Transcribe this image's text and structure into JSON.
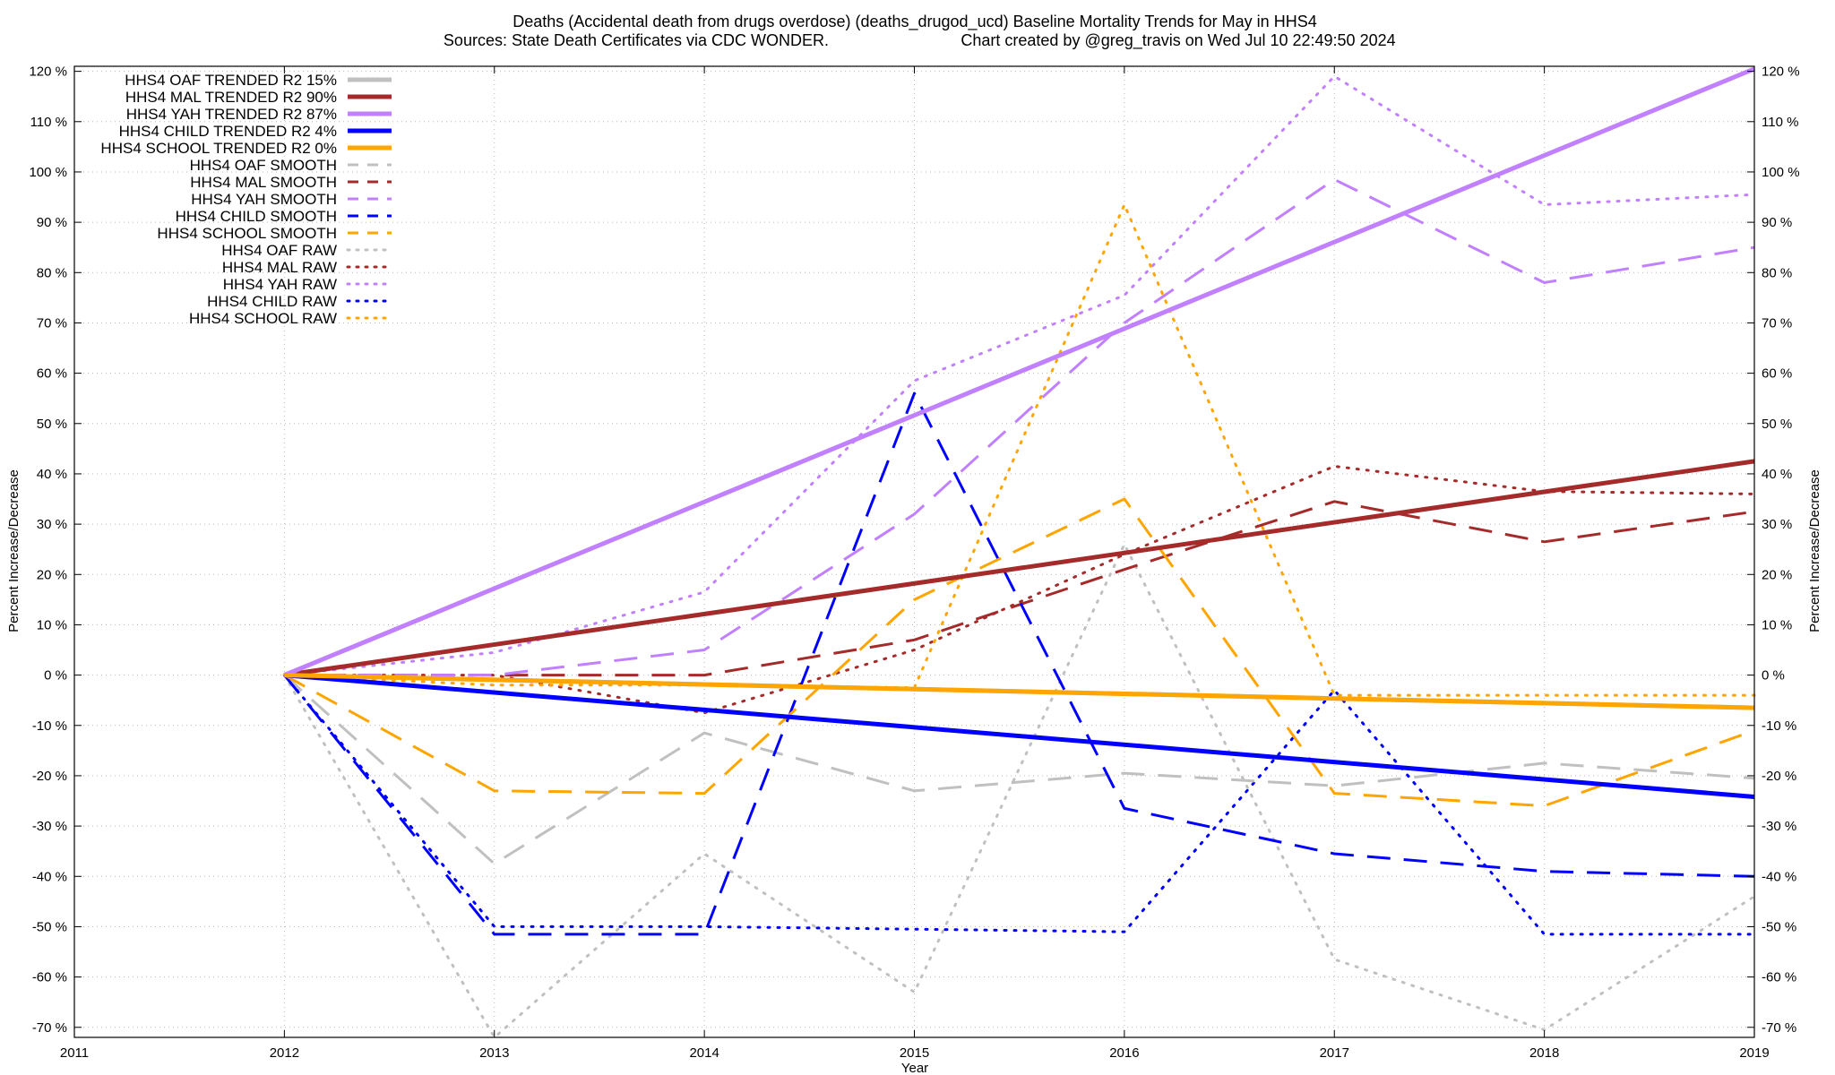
{
  "chart_data": {
    "type": "line",
    "title_line1": "Deaths (Accidental death from drugs overdose) (deaths_drugod_ucd)  Baseline Mortality Trends for May in HHS4",
    "title_line2_left": "Sources: State Death Certificates via CDC WONDER.",
    "title_line2_right": "Chart created by @greg_travis on Wed Jul 10 22:49:50 2024",
    "xlabel": "Year",
    "ylabel": "Percent Increase/Decrease",
    "ylabel_right": "Percent Increase/Decrease",
    "xlim": [
      2011,
      2019
    ],
    "ylim": [
      -72,
      121
    ],
    "x_ticks": [
      2011,
      2012,
      2013,
      2014,
      2015,
      2016,
      2017,
      2018,
      2019
    ],
    "y_ticks": [
      120,
      110,
      100,
      90,
      80,
      70,
      60,
      50,
      40,
      30,
      20,
      10,
      0,
      -10,
      -20,
      -30,
      -40,
      -50,
      -60,
      -70
    ],
    "y_tick_suffix": " %",
    "grid": true,
    "legend_position": "top-left",
    "series": [
      {
        "name": "HHS4 OAF TRENDED R2",
        "r2": "15%",
        "color": "#c0c0c0",
        "style": "solid",
        "width": 5,
        "points": [
          [
            2012,
            0
          ],
          [
            2019,
            -6.5
          ]
        ]
      },
      {
        "name": "HHS4 MAL TRENDED R2",
        "r2": "90%",
        "color": "#a52a2a",
        "style": "solid",
        "width": 5,
        "points": [
          [
            2012,
            0
          ],
          [
            2019,
            42.5
          ]
        ]
      },
      {
        "name": "HHS4 YAH TRENDED R2",
        "r2": "87%",
        "color": "#c080ff",
        "style": "solid",
        "width": 5,
        "points": [
          [
            2012,
            0
          ],
          [
            2019,
            120.5
          ]
        ]
      },
      {
        "name": "HHS4 CHILD TRENDED R2",
        "r2": "4%",
        "color": "#0000ff",
        "style": "solid",
        "width": 5,
        "points": [
          [
            2012,
            0
          ],
          [
            2019,
            -24.2
          ]
        ]
      },
      {
        "name": "HHS4 SCHOOL TRENDED R2",
        "r2": "0%",
        "color": "#ffa500",
        "style": "solid",
        "width": 5,
        "points": [
          [
            2012,
            0
          ],
          [
            2019,
            -6.5
          ]
        ]
      },
      {
        "name": "HHS4 OAF SMOOTH",
        "r2": "",
        "color": "#c0c0c0",
        "style": "dashed",
        "width": 3,
        "points": [
          [
            2012,
            0
          ],
          [
            2013,
            -37.5
          ],
          [
            2014,
            -11.5
          ],
          [
            2015,
            -23
          ],
          [
            2016,
            -19.5
          ],
          [
            2017,
            -22
          ],
          [
            2018,
            -17.5
          ],
          [
            2019,
            -20.5
          ]
        ]
      },
      {
        "name": "HHS4 MAL SMOOTH",
        "r2": "",
        "color": "#a52a2a",
        "style": "dashed",
        "width": 3,
        "points": [
          [
            2012,
            0
          ],
          [
            2013,
            0
          ],
          [
            2014,
            0
          ],
          [
            2015,
            7
          ],
          [
            2016,
            21
          ],
          [
            2017,
            34.5
          ],
          [
            2018,
            26.5
          ],
          [
            2019,
            32.5
          ]
        ]
      },
      {
        "name": "HHS4 YAH SMOOTH",
        "r2": "",
        "color": "#c080ff",
        "style": "dashed",
        "width": 3,
        "points": [
          [
            2012,
            0
          ],
          [
            2013,
            0
          ],
          [
            2014,
            5
          ],
          [
            2015,
            32
          ],
          [
            2016,
            70
          ],
          [
            2017,
            98.5
          ],
          [
            2018,
            78
          ],
          [
            2019,
            85
          ]
        ]
      },
      {
        "name": "HHS4 CHILD SMOOTH",
        "r2": "",
        "color": "#0000ff",
        "style": "dashed",
        "width": 3,
        "points": [
          [
            2012,
            0
          ],
          [
            2013,
            -51.5
          ],
          [
            2014,
            -51.5
          ],
          [
            2015,
            56
          ],
          [
            2016,
            -26.5
          ],
          [
            2017,
            -35.5
          ],
          [
            2018,
            -39
          ],
          [
            2019,
            -40
          ]
        ]
      },
      {
        "name": "HHS4 SCHOOL SMOOTH",
        "r2": "",
        "color": "#ffa500",
        "style": "dashed",
        "width": 3,
        "points": [
          [
            2012,
            0
          ],
          [
            2013,
            -23
          ],
          [
            2014,
            -23.5
          ],
          [
            2015,
            15
          ],
          [
            2016,
            35
          ],
          [
            2017,
            -23.5
          ],
          [
            2018,
            -26
          ],
          [
            2019,
            -11
          ]
        ]
      },
      {
        "name": "HHS4 OAF RAW",
        "r2": "",
        "color": "#c0c0c0",
        "style": "dotted",
        "width": 3,
        "points": [
          [
            2012,
            0
          ],
          [
            2013,
            -72
          ],
          [
            2014,
            -35.5
          ],
          [
            2015,
            -63
          ],
          [
            2016,
            26
          ],
          [
            2017,
            -56.5
          ],
          [
            2018,
            -70.5
          ],
          [
            2019,
            -44
          ]
        ]
      },
      {
        "name": "HHS4 MAL RAW",
        "r2": "",
        "color": "#a52a2a",
        "style": "dotted",
        "width": 3,
        "points": [
          [
            2012,
            0
          ],
          [
            2013,
            0
          ],
          [
            2014,
            -7.5
          ],
          [
            2015,
            5
          ],
          [
            2016,
            24
          ],
          [
            2017,
            41.5
          ],
          [
            2018,
            36.5
          ],
          [
            2019,
            36
          ]
        ]
      },
      {
        "name": "HHS4 YAH RAW",
        "r2": "",
        "color": "#c080ff",
        "style": "dotted",
        "width": 3,
        "points": [
          [
            2012,
            0
          ],
          [
            2013,
            4.5
          ],
          [
            2014,
            16.5
          ],
          [
            2015,
            58.5
          ],
          [
            2016,
            75.5
          ],
          [
            2017,
            119
          ],
          [
            2018,
            93.5
          ],
          [
            2019,
            95.5
          ]
        ]
      },
      {
        "name": "HHS4 CHILD RAW",
        "r2": "",
        "color": "#0000ff",
        "style": "dotted",
        "width": 3,
        "points": [
          [
            2012,
            0
          ],
          [
            2013,
            -50
          ],
          [
            2014,
            -50
          ],
          [
            2015,
            -50.5
          ],
          [
            2016,
            -51
          ],
          [
            2017,
            -3
          ],
          [
            2018,
            -51.5
          ],
          [
            2019,
            -51.5
          ]
        ]
      },
      {
        "name": "HHS4 SCHOOL RAW",
        "r2": "",
        "color": "#ffa500",
        "style": "dotted",
        "width": 3,
        "points": [
          [
            2012,
            0
          ],
          [
            2013,
            -2
          ],
          [
            2014,
            -2
          ],
          [
            2015,
            -2.5
          ],
          [
            2016,
            93.5
          ],
          [
            2017,
            -4
          ],
          [
            2018,
            -4
          ],
          [
            2019,
            -4
          ]
        ]
      }
    ]
  }
}
